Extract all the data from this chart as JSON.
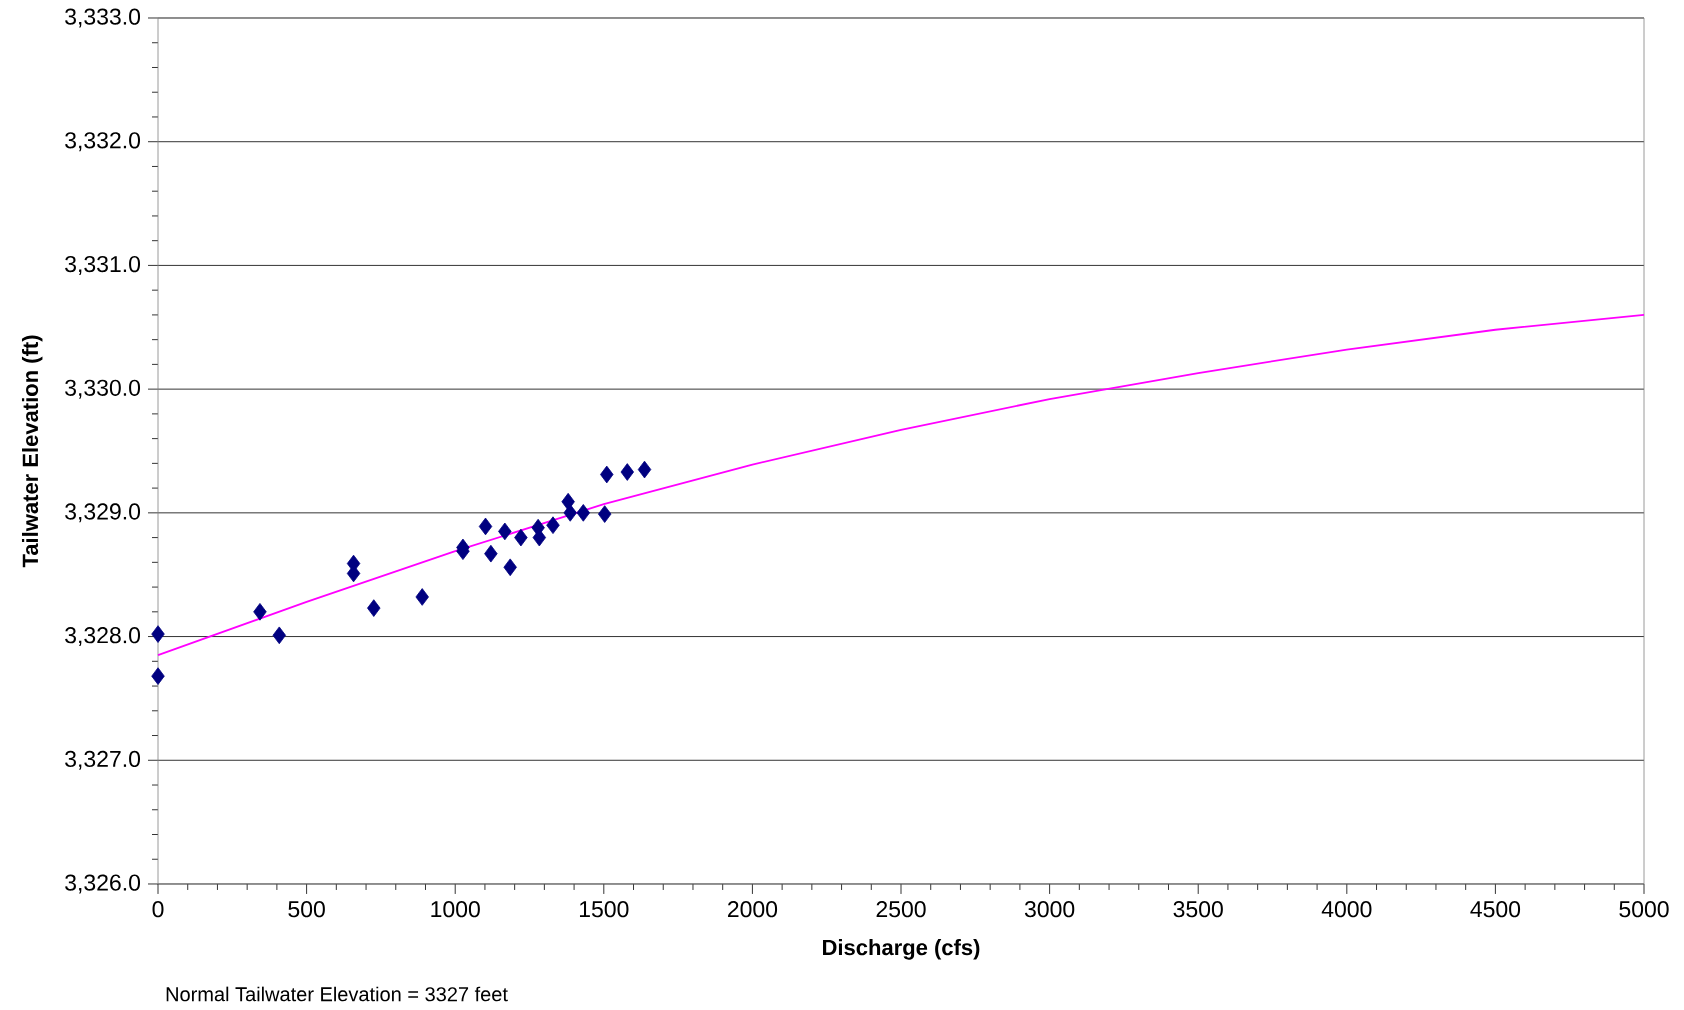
{
  "chart_data": {
    "type": "scatter",
    "xlabel": "Discharge (cfs)",
    "ylabel": "Tailwater Elevation (ft)",
    "annotations": [
      "Normal Tailwater Elevation = 3327 feet"
    ],
    "xlim": [
      0,
      5000
    ],
    "xticks": [
      0,
      500,
      1000,
      1500,
      2000,
      2500,
      3000,
      3500,
      4000,
      4500,
      5000
    ],
    "ylim": [
      3326,
      3333
    ],
    "yticks": [
      {
        "value": 3326,
        "label": "3,326.0"
      },
      {
        "value": 3327,
        "label": "3,327.0"
      },
      {
        "value": 3328,
        "label": "3,328.0"
      },
      {
        "value": 3329,
        "label": "3,329.0"
      },
      {
        "value": 3330,
        "label": "3,330.0"
      },
      {
        "value": 3331,
        "label": "3,331.0"
      },
      {
        "value": 3332,
        "label": "3,332.0"
      },
      {
        "value": 3333,
        "label": "3,333.0"
      }
    ],
    "grid": "y",
    "series": [
      {
        "color": "#000080",
        "marker": "diamond",
        "x": [
          0,
          0,
          343,
          408,
          658,
          658,
          726,
          889,
          1026,
          1026,
          1102,
          1120,
          1167,
          1185,
          1221,
          1279,
          1283,
          1329,
          1380,
          1387,
          1431,
          1503,
          1510,
          1579,
          1637
        ],
        "values": [
          3328.02,
          3327.68,
          3328.2,
          3328.01,
          3328.59,
          3328.51,
          3328.23,
          3328.32,
          3328.72,
          3328.69,
          3328.89,
          3328.67,
          3328.85,
          3328.56,
          3328.8,
          3328.88,
          3328.8,
          3328.9,
          3329.09,
          3329.0,
          3329.0,
          3328.99,
          3329.31,
          3329.33,
          3329.35
        ]
      },
      {
        "type": "line",
        "color": "#ff00ff",
        "marker": "none",
        "line_style": "solid",
        "x": [
          0,
          500,
          1000,
          1500,
          2000,
          2500,
          3000,
          3500,
          4000,
          4500,
          5000
        ],
        "values": [
          3327.85,
          3328.28,
          3328.69,
          3329.07,
          3329.39,
          3329.67,
          3329.92,
          3330.13,
          3330.32,
          3330.48,
          3330.6
        ]
      }
    ]
  }
}
